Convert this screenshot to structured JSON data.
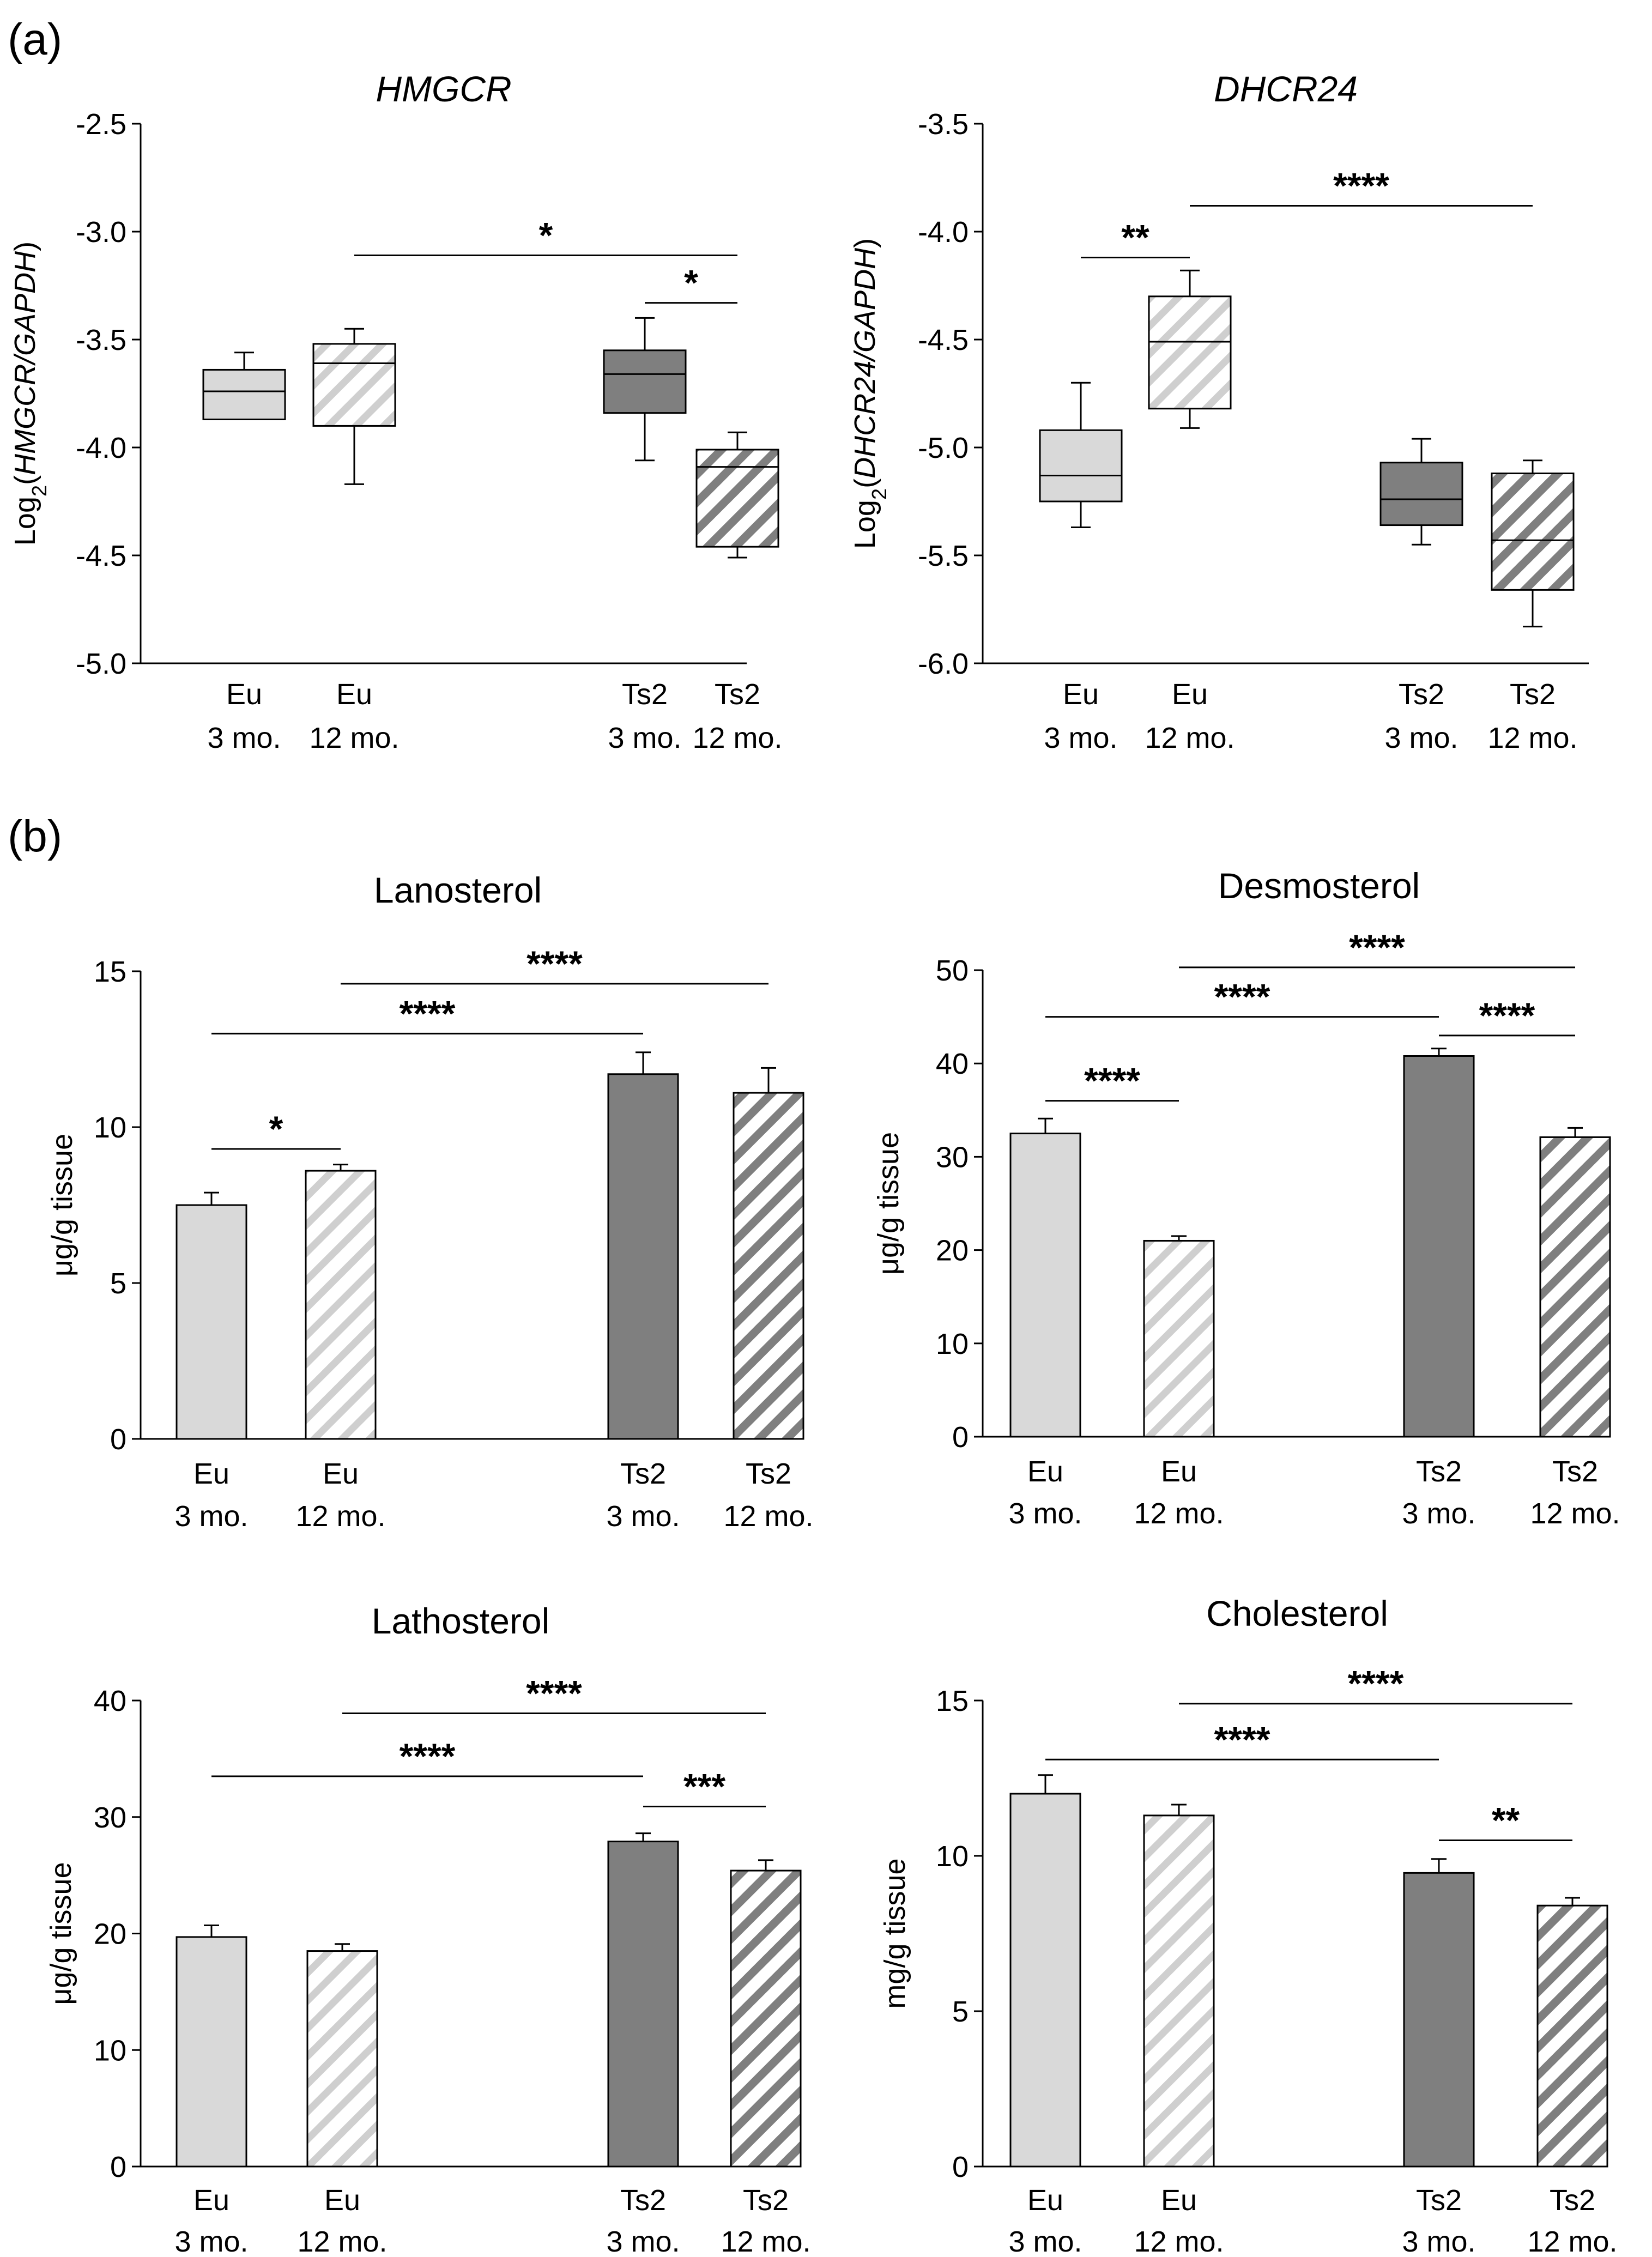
{
  "panel_letters": [
    "(a)",
    "(b)"
  ],
  "legend_colors": {
    "Eu 3 mo.": "#d9d9d9",
    "Eu 12 mo.": "#e6e6e6",
    "Ts2 3 mo.": "#7f7f7f",
    "Ts2 12 mo.": "#808080"
  },
  "chart_data": [
    {
      "id": "hmgcr",
      "type": "box",
      "title": "HMGCR",
      "title_italic": true,
      "ylabel": "Log2(HMGCR/GAPDH)",
      "ylabel_parts": [
        "Log",
        "2",
        "(",
        "HMGCR/GAPDH",
        ")"
      ],
      "ylim": [
        -5.0,
        -2.5
      ],
      "yticks": [
        -2.5,
        -3.0,
        -3.5,
        -4.0,
        -4.5,
        -5.0
      ],
      "ytick_labels": [
        "-2.5",
        "-3.0",
        "-3.5",
        "-4.0",
        "-4.5",
        "-5.0"
      ],
      "categories": [
        [
          "Eu",
          "3 mo."
        ],
        [
          "Eu",
          "12 mo."
        ],
        [
          "Ts2",
          "3 mo."
        ],
        [
          "Ts2",
          "12 mo."
        ]
      ],
      "boxes": [
        {
          "min": -3.87,
          "q1": -3.87,
          "median": -3.74,
          "q3": -3.64,
          "max": -3.56
        },
        {
          "min": -4.17,
          "q1": -3.9,
          "median": -3.61,
          "q3": -3.52,
          "max": -3.45
        },
        {
          "min": -4.06,
          "q1": -3.84,
          "median": -3.66,
          "q3": -3.55,
          "max": -3.4
        },
        {
          "min": -4.51,
          "q1": -4.46,
          "median": -4.09,
          "q3": -4.01,
          "max": -3.93
        }
      ],
      "significance": [
        {
          "from": 1,
          "to": 3,
          "y": -3.11,
          "label": "*"
        },
        {
          "from": 2,
          "to": 3,
          "y": -3.33,
          "label": "*"
        }
      ]
    },
    {
      "id": "dhcr24",
      "type": "box",
      "title": "DHCR24",
      "title_italic": true,
      "ylabel": "Log2(DHCR24/GAPDH)",
      "ylabel_parts": [
        "Log",
        "2",
        "(",
        "DHCR24/GAPDH",
        ")"
      ],
      "ylim": [
        -6.0,
        -3.5
      ],
      "yticks": [
        -3.5,
        -4.0,
        -4.5,
        -5.0,
        -5.5,
        -6.0
      ],
      "ytick_labels": [
        "-3.5",
        "-4.0",
        "-4.5",
        "-5.0",
        "-5.5",
        "-6.0"
      ],
      "categories": [
        [
          "Eu",
          "3 mo."
        ],
        [
          "Eu",
          "12 mo."
        ],
        [
          "Ts2",
          "3 mo."
        ],
        [
          "Ts2",
          "12 mo."
        ]
      ],
      "boxes": [
        {
          "min": -5.37,
          "q1": -5.25,
          "median": -5.13,
          "q3": -4.92,
          "max": -4.7
        },
        {
          "min": -4.91,
          "q1": -4.82,
          "median": -4.51,
          "q3": -4.3,
          "max": -4.18
        },
        {
          "min": -5.45,
          "q1": -5.36,
          "median": -5.24,
          "q3": -5.07,
          "max": -4.96
        },
        {
          "min": -5.83,
          "q1": -5.66,
          "median": -5.43,
          "q3": -5.12,
          "max": -5.06
        }
      ],
      "significance": [
        {
          "from": 0,
          "to": 1,
          "y": -4.12,
          "label": "**"
        },
        {
          "from": 1,
          "to": 3,
          "y": -3.88,
          "label": "****"
        }
      ]
    },
    {
      "id": "lanosterol",
      "type": "bar",
      "title": "Lanosterol",
      "title_italic": false,
      "ylabel": "μg/g tissue",
      "ylim": [
        0,
        15
      ],
      "yticks": [
        0,
        5,
        10,
        15
      ],
      "ytick_labels": [
        "0",
        "5",
        "10",
        "15"
      ],
      "categories": [
        [
          "Eu",
          "3 mo."
        ],
        [
          "Eu",
          "12 mo."
        ],
        [
          "Ts2",
          "3 mo."
        ],
        [
          "Ts2",
          "12 mo."
        ]
      ],
      "values": [
        7.5,
        8.6,
        11.7,
        11.1
      ],
      "errors": [
        0.4,
        0.2,
        0.7,
        0.8
      ],
      "significance": [
        {
          "from": 0,
          "to": 1,
          "y": 9.3,
          "label": "*"
        },
        {
          "from": 0,
          "to": 2,
          "y": 13.0,
          "label": "****"
        },
        {
          "from": 1,
          "to": 3,
          "y": 14.6,
          "label": "****"
        }
      ]
    },
    {
      "id": "desmosterol",
      "type": "bar",
      "title": "Desmosterol",
      "title_italic": false,
      "ylabel": "μg/g tissue",
      "ylim": [
        0,
        50
      ],
      "yticks": [
        0,
        10,
        20,
        30,
        40,
        50
      ],
      "ytick_labels": [
        "0",
        "10",
        "20",
        "30",
        "40",
        "50"
      ],
      "categories": [
        [
          "Eu",
          "3 mo."
        ],
        [
          "Eu",
          "12 mo."
        ],
        [
          "Ts2",
          "3 mo."
        ],
        [
          "Ts2",
          "12 mo."
        ]
      ],
      "values": [
        32.5,
        21.0,
        40.8,
        32.1
      ],
      "errors": [
        1.6,
        0.5,
        0.8,
        1.0
      ],
      "significance": [
        {
          "from": 0,
          "to": 1,
          "y": 36.0,
          "label": "****"
        },
        {
          "from": 0,
          "to": 2,
          "y": 45.0,
          "label": "****"
        },
        {
          "from": 2,
          "to": 3,
          "y": 43.0,
          "label": "****"
        },
        {
          "from": 1,
          "to": 3,
          "y": 50.3,
          "label": "****"
        }
      ]
    },
    {
      "id": "lathosterol",
      "type": "bar",
      "title": "Lathosterol",
      "title_italic": false,
      "ylabel": "μg/g tissue",
      "ylim": [
        0,
        40
      ],
      "yticks": [
        0,
        10,
        20,
        30,
        40
      ],
      "ytick_labels": [
        "0",
        "10",
        "20",
        "30",
        "40"
      ],
      "categories": [
        [
          "Eu",
          "3 mo."
        ],
        [
          "Eu",
          "12 mo."
        ],
        [
          "Ts2",
          "3 mo."
        ],
        [
          "Ts2",
          "12 mo."
        ]
      ],
      "values": [
        19.7,
        18.5,
        27.9,
        25.4
      ],
      "errors": [
        1.0,
        0.6,
        0.7,
        0.9
      ],
      "significance": [
        {
          "from": 0,
          "to": 2,
          "y": 33.5,
          "label": "****"
        },
        {
          "from": 2,
          "to": 3,
          "y": 30.9,
          "label": "***"
        },
        {
          "from": 1,
          "to": 3,
          "y": 38.9,
          "label": "****"
        }
      ]
    },
    {
      "id": "cholesterol",
      "type": "bar",
      "title": "Cholesterol",
      "title_italic": false,
      "ylabel": "mg/g tissue",
      "ylim": [
        0,
        15
      ],
      "yticks": [
        0,
        5,
        10,
        15
      ],
      "ytick_labels": [
        "0",
        "5",
        "10",
        "15"
      ],
      "categories": [
        [
          "Eu",
          "3 mo."
        ],
        [
          "Eu",
          "12 mo."
        ],
        [
          "Ts2",
          "3 mo."
        ],
        [
          "Ts2",
          "12 mo."
        ]
      ],
      "values": [
        12.0,
        11.3,
        9.45,
        8.4
      ],
      "errors": [
        0.6,
        0.35,
        0.45,
        0.25
      ],
      "significance": [
        {
          "from": 0,
          "to": 2,
          "y": 13.1,
          "label": "****"
        },
        {
          "from": 2,
          "to": 3,
          "y": 10.5,
          "label": "**"
        },
        {
          "from": 1,
          "to": 3,
          "y": 14.9,
          "label": "****"
        }
      ]
    }
  ]
}
